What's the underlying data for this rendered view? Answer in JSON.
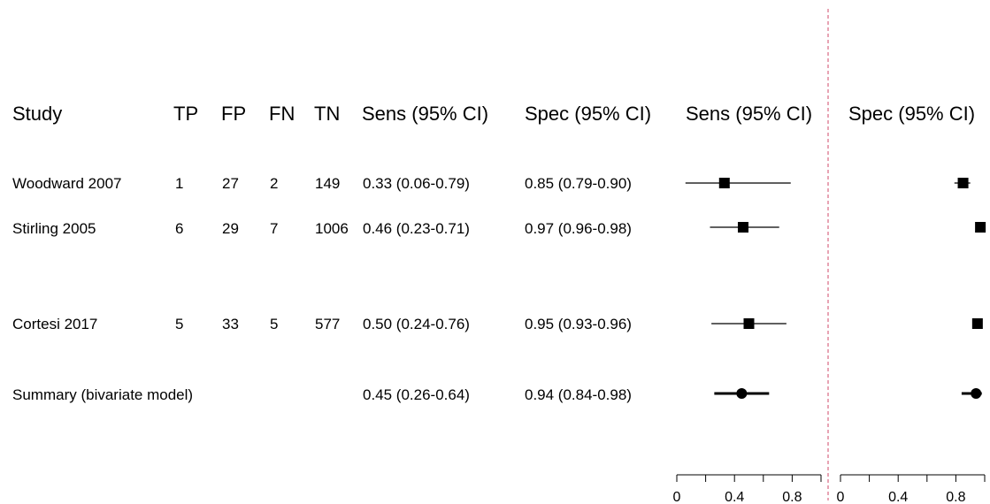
{
  "table": {
    "headers": [
      "Study",
      "TP",
      "FP",
      "FN",
      "TN",
      "Sens (95% CI)",
      "Spec (95% CI)"
    ],
    "rows": [
      {
        "study": "Woodward 2007",
        "tp": "1",
        "fp": "27",
        "fn": "2",
        "tn": "149",
        "sens_text": "0.33 (0.06-0.79)",
        "spec_text": "0.85 (0.79-0.90)"
      },
      {
        "study": "Stirling  2005",
        "tp": "6",
        "fp": "29",
        "fn": "7",
        "tn": "1006",
        "sens_text": "0.46 (0.23-0.71)",
        "spec_text": "0.97 (0.96-0.98)"
      },
      {
        "study": "Cortesi 2017",
        "tp": "5",
        "fp": "33",
        "fn": "5",
        "tn": "577",
        "sens_text": "0.50 (0.24-0.76)",
        "spec_text": "0.95 (0.93-0.96)"
      }
    ],
    "summary": {
      "label": "Summary (bivariate model)",
      "sens_text": "0.45 (0.26-0.64)",
      "spec_text": "0.94 (0.84-0.98)"
    }
  },
  "chart_data": [
    {
      "type": "forest",
      "title": "Sens (95% CI)",
      "xlim": [
        0,
        1
      ],
      "ticks": [
        0,
        0.2,
        0.4,
        0.6,
        0.8,
        1.0
      ],
      "tick_labels": [
        "0",
        "0.4",
        "0.8"
      ],
      "tick_label_values": [
        0,
        0.4,
        0.8
      ],
      "studies": [
        {
          "name": "Woodward 2007",
          "estimate": 0.33,
          "lower": 0.06,
          "upper": 0.79
        },
        {
          "name": "Stirling  2005",
          "estimate": 0.46,
          "lower": 0.23,
          "upper": 0.71
        },
        {
          "name": "Cortesi 2017",
          "estimate": 0.5,
          "lower": 0.24,
          "upper": 0.76
        }
      ],
      "summary": {
        "name": "Summary (bivariate model)",
        "estimate": 0.45,
        "lower": 0.26,
        "upper": 0.64
      }
    },
    {
      "type": "forest",
      "title": "Spec (95% CI)",
      "xlim": [
        0,
        1
      ],
      "ticks": [
        0,
        0.2,
        0.4,
        0.6,
        0.8,
        1.0
      ],
      "tick_labels": [
        "0",
        "0.4",
        "0.8"
      ],
      "tick_label_values": [
        0,
        0.4,
        0.8
      ],
      "studies": [
        {
          "name": "Woodward 2007",
          "estimate": 0.85,
          "lower": 0.79,
          "upper": 0.9
        },
        {
          "name": "Stirling  2005",
          "estimate": 0.97,
          "lower": 0.96,
          "upper": 0.98
        },
        {
          "name": "Cortesi 2017",
          "estimate": 0.95,
          "lower": 0.93,
          "upper": 0.96
        }
      ],
      "summary": {
        "name": "Summary (bivariate model)",
        "estimate": 0.94,
        "lower": 0.84,
        "upper": 0.98
      }
    }
  ],
  "colors": {
    "ink": "#000000",
    "divider": "#d04a6a"
  }
}
